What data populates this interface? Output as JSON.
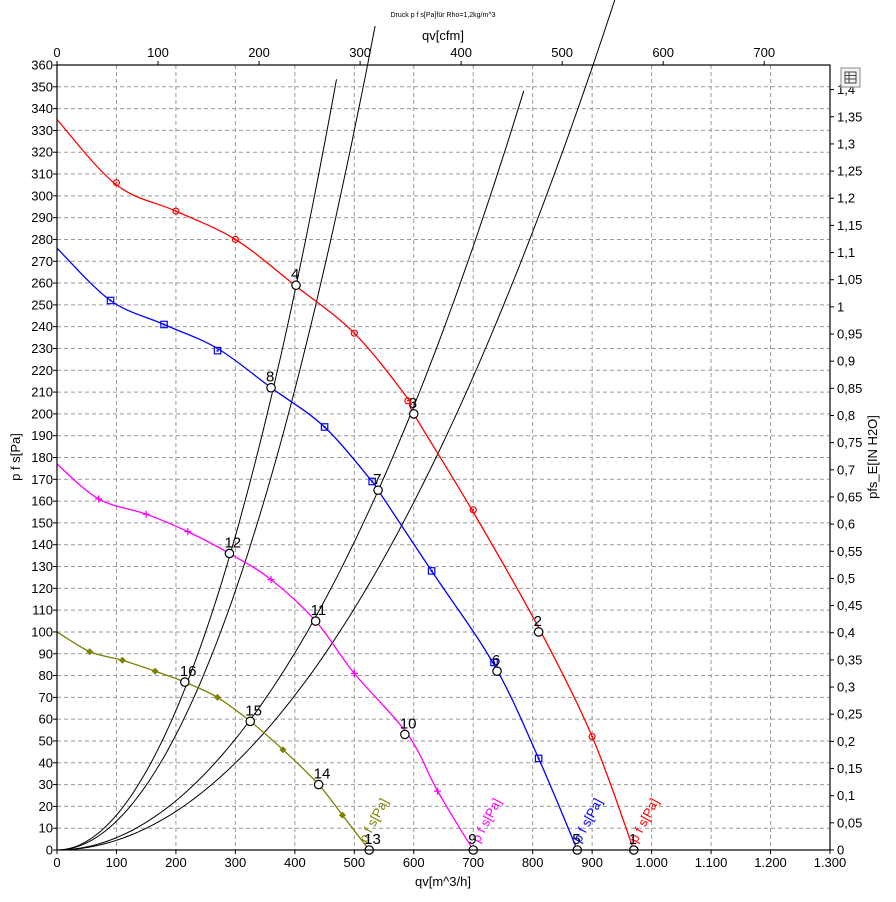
{
  "chart_data": {
    "type": "line",
    "title": "Druck p f s[Pa]für Rho=1,2kg/m^3",
    "xlabel": "qv[m^3/h]",
    "ylabel": "p f s[Pa]",
    "x2label": "qv[cfm]",
    "y2label": "pfs_E[IN H2O]",
    "xlim": [
      0,
      1300
    ],
    "ylim": [
      0,
      360
    ],
    "x2lim": [
      0,
      765.1
    ],
    "y2lim": [
      0,
      1.4453
    ],
    "x_ticks": [
      "0",
      "100",
      "200",
      "300",
      "400",
      "500",
      "600",
      "700",
      "800",
      "900",
      "1.000",
      "1.100",
      "1.200",
      "1.300"
    ],
    "y_ticks": [
      "0",
      "10",
      "20",
      "30",
      "40",
      "50",
      "60",
      "70",
      "80",
      "90",
      "100",
      "110",
      "120",
      "130",
      "140",
      "150",
      "160",
      "170",
      "180",
      "190",
      "200",
      "210",
      "220",
      "230",
      "240",
      "250",
      "260",
      "270",
      "280",
      "290",
      "300",
      "310",
      "320",
      "330",
      "340",
      "350",
      "360"
    ],
    "x2_ticks": [
      "0",
      "100",
      "200",
      "300",
      "400",
      "500",
      "600",
      "700"
    ],
    "y2_ticks": [
      "0",
      "0,05",
      "0,1",
      "0,15",
      "0,2",
      "0,25",
      "0,3",
      "0,35",
      "0,4",
      "0,45",
      "0,5",
      "0,55",
      "0,6",
      "0,65",
      "0,7",
      "0,75",
      "0,8",
      "0,85",
      "0,9",
      "0,95",
      "1",
      "1,05",
      "1,1",
      "1,15",
      "1,2",
      "1,25",
      "1,3",
      "1,35",
      "1,4"
    ],
    "grid": true,
    "series": [
      {
        "name": "p f s[Pa]",
        "color": "#ff0000",
        "marker": "circle",
        "label_at": [
          975,
          3
        ],
        "points": [
          [
            0,
            335
          ],
          [
            100,
            305
          ],
          [
            200,
            293
          ],
          [
            300,
            280
          ],
          [
            400,
            259
          ],
          [
            500,
            237
          ],
          [
            590,
            207
          ],
          [
            600,
            200
          ],
          [
            700,
            155
          ],
          [
            810,
            102
          ],
          [
            900,
            52
          ],
          [
            970,
            0
          ]
        ],
        "markers": [
          [
            100,
            306
          ],
          [
            200,
            293
          ],
          [
            300,
            280
          ],
          [
            500,
            237
          ],
          [
            590,
            206
          ],
          [
            700,
            156
          ],
          [
            900,
            52
          ]
        ]
      },
      {
        "name": "p f s[Pa]",
        "color": "#0000ff",
        "marker": "square",
        "label_at": [
          880,
          3
        ],
        "points": [
          [
            0,
            276
          ],
          [
            90,
            252
          ],
          [
            180,
            241
          ],
          [
            270,
            230
          ],
          [
            360,
            212
          ],
          [
            450,
            194
          ],
          [
            530,
            169
          ],
          [
            540,
            165
          ],
          [
            630,
            128
          ],
          [
            735,
            85
          ],
          [
            810,
            42
          ],
          [
            875,
            0
          ]
        ],
        "markers": [
          [
            90,
            252
          ],
          [
            180,
            241
          ],
          [
            270,
            229
          ],
          [
            450,
            194
          ],
          [
            530,
            169
          ],
          [
            630,
            128
          ],
          [
            735,
            86
          ],
          [
            810,
            42
          ]
        ]
      },
      {
        "name": "p f s[Pa]",
        "color": "#ff00ff",
        "marker": "plus",
        "label_at": [
          710,
          3
        ],
        "points": [
          [
            0,
            177
          ],
          [
            70,
            161
          ],
          [
            150,
            154
          ],
          [
            220,
            146
          ],
          [
            290,
            136
          ],
          [
            360,
            124
          ],
          [
            435,
            105
          ],
          [
            500,
            81
          ],
          [
            590,
            53
          ],
          [
            640,
            27
          ],
          [
            700,
            0
          ]
        ],
        "markers": [
          [
            70,
            161
          ],
          [
            150,
            154
          ],
          [
            220,
            146
          ],
          [
            360,
            124
          ],
          [
            500,
            81
          ],
          [
            640,
            27
          ]
        ]
      },
      {
        "name": "p f s[Pa]",
        "color": "#808000",
        "marker": "diamond",
        "label_at": [
          520,
          3
        ],
        "points": [
          [
            0,
            100
          ],
          [
            55,
            91
          ],
          [
            110,
            87
          ],
          [
            165,
            82
          ],
          [
            215,
            77
          ],
          [
            270,
            70
          ],
          [
            325,
            59
          ],
          [
            380,
            46
          ],
          [
            440,
            30
          ],
          [
            480,
            16
          ],
          [
            525,
            0
          ]
        ],
        "markers": [
          [
            55,
            91
          ],
          [
            110,
            87
          ],
          [
            165,
            82
          ],
          [
            270,
            70
          ],
          [
            380,
            46
          ],
          [
            480,
            16
          ]
        ]
      }
    ],
    "system_curves": [
      {
        "k": 0.000443,
        "x_max": 1090
      },
      {
        "k": 0.000565,
        "x_max": 785
      },
      {
        "k": 0.00132,
        "x_max": 535
      },
      {
        "k": 0.0016,
        "x_max": 470
      }
    ],
    "operating_points": [
      {
        "label": "1",
        "x": 970,
        "y": 0
      },
      {
        "label": "2",
        "x": 810,
        "y": 100
      },
      {
        "label": "3",
        "x": 600,
        "y": 200
      },
      {
        "label": "4",
        "x": 402,
        "y": 259
      },
      {
        "label": "5",
        "x": 875,
        "y": 0
      },
      {
        "label": "6",
        "x": 740,
        "y": 82
      },
      {
        "label": "7",
        "x": 540,
        "y": 165
      },
      {
        "label": "8",
        "x": 360,
        "y": 212
      },
      {
        "label": "9",
        "x": 700,
        "y": 0
      },
      {
        "label": "10",
        "x": 585,
        "y": 53
      },
      {
        "label": "11",
        "x": 435,
        "y": 105
      },
      {
        "label": "12",
        "x": 290,
        "y": 136
      },
      {
        "label": "13",
        "x": 525,
        "y": 0
      },
      {
        "label": "14",
        "x": 440,
        "y": 30
      },
      {
        "label": "15",
        "x": 325,
        "y": 59
      },
      {
        "label": "16",
        "x": 215,
        "y": 77
      }
    ],
    "menu_icon": "table-icon"
  }
}
